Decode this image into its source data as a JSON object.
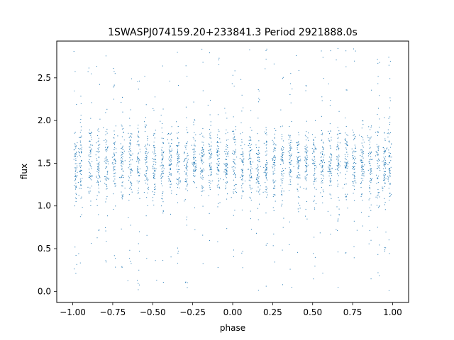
{
  "chart_data": {
    "type": "scatter",
    "title": "1SWASPJ074159.20+233841.3 Period 2921888.0s",
    "xlabel": "phase",
    "ylabel": "flux",
    "xlim": [
      -1.1,
      1.1
    ],
    "ylim": [
      -0.13,
      2.93
    ],
    "xticks": [
      -1.0,
      -0.75,
      -0.5,
      -0.25,
      0.0,
      0.25,
      0.5,
      0.75,
      1.0
    ],
    "xtick_labels": [
      "−1.00",
      "−0.75",
      "−0.50",
      "−0.25",
      "0.00",
      "0.25",
      "0.50",
      "0.75",
      "1.00"
    ],
    "yticks": [
      0.0,
      0.5,
      1.0,
      1.5,
      2.0,
      2.5
    ],
    "ytick_labels": [
      "0.0",
      "0.5",
      "1.0",
      "1.5",
      "2.0",
      "2.5"
    ],
    "grid": false,
    "legend": "none",
    "marker_color": "#1f77b4",
    "series": [
      {
        "x_range": [
          -1.0,
          1.0
        ],
        "y_core": [
          1.05,
          1.95
        ],
        "y_outliers": [
          0.0,
          2.85
        ],
        "stripe_centers": [
          -0.98,
          -0.95,
          -0.89,
          -0.84,
          -0.79,
          -0.74,
          -0.69,
          -0.64,
          -0.59,
          -0.54,
          -0.49,
          -0.44,
          -0.39,
          -0.34,
          -0.29,
          -0.24,
          -0.19,
          -0.14,
          -0.09,
          -0.04,
          0.01,
          0.06,
          0.11,
          0.16,
          0.21,
          0.26,
          0.31,
          0.36,
          0.41,
          0.46,
          0.51,
          0.56,
          0.61,
          0.66,
          0.71,
          0.76,
          0.81,
          0.86,
          0.91,
          0.95,
          0.98
        ]
      }
    ]
  }
}
